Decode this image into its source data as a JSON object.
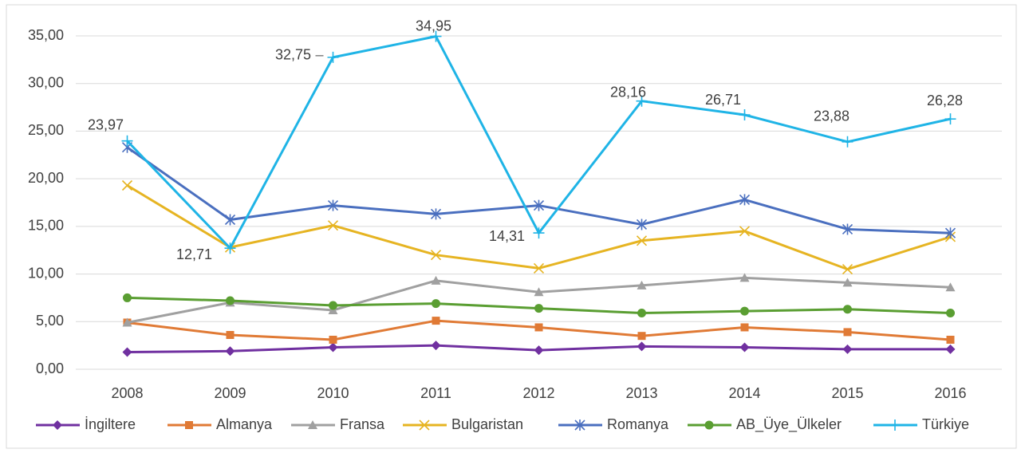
{
  "chart_data": {
    "type": "line",
    "categories": [
      "2008",
      "2009",
      "2010",
      "2011",
      "2012",
      "2013",
      "2014",
      "2015",
      "2016"
    ],
    "ylim": [
      0,
      35
    ],
    "yticks": [
      {
        "value": 0,
        "label": "0,00"
      },
      {
        "value": 5,
        "label": "5,00"
      },
      {
        "value": 10,
        "label": "10,00"
      },
      {
        "value": 15,
        "label": "15,00"
      },
      {
        "value": 20,
        "label": "20,00"
      },
      {
        "value": 25,
        "label": "25,00"
      },
      {
        "value": 30,
        "label": "30,00"
      },
      {
        "value": 35,
        "label": "35,00"
      }
    ],
    "grid": true,
    "legend": "bottom",
    "series": [
      {
        "name": "İngiltere",
        "color": "#7030a0",
        "marker": "diamond",
        "values": [
          1.8,
          1.9,
          2.3,
          2.5,
          2.0,
          2.4,
          2.3,
          2.1,
          2.1
        ]
      },
      {
        "name": "Almanya",
        "color": "#e07a35",
        "marker": "square",
        "values": [
          4.9,
          3.6,
          3.1,
          5.1,
          4.4,
          3.5,
          4.4,
          3.9,
          3.1
        ]
      },
      {
        "name": "Fransa",
        "color": "#a0a0a0",
        "marker": "triangle",
        "values": [
          4.9,
          7.0,
          6.2,
          9.3,
          8.1,
          8.8,
          9.6,
          9.1,
          8.6
        ]
      },
      {
        "name": "Bulgaristan",
        "color": "#e6b422",
        "marker": "x",
        "values": [
          19.3,
          12.8,
          15.1,
          12.0,
          10.6,
          13.5,
          14.5,
          10.5,
          13.9
        ]
      },
      {
        "name": "Romanya",
        "color": "#4a6fbf",
        "marker": "asterisk",
        "values": [
          23.3,
          15.7,
          17.2,
          16.3,
          17.2,
          15.2,
          17.8,
          14.7,
          14.3
        ]
      },
      {
        "name": "AB_Üye_Ülkeler",
        "color": "#5a9e32",
        "marker": "circle",
        "values": [
          7.5,
          7.2,
          6.7,
          6.9,
          6.4,
          5.9,
          6.1,
          6.3,
          5.9
        ]
      },
      {
        "name": "Türkiye",
        "color": "#1fb4e6",
        "marker": "plus",
        "values": [
          23.97,
          12.71,
          32.75,
          34.95,
          14.31,
          28.16,
          26.71,
          23.88,
          26.28
        ],
        "value_labels": [
          "23,97",
          "12,71",
          "32,75",
          "34,95",
          "14,31",
          "28,16",
          "26,71",
          "23,88",
          "26,28"
        ]
      }
    ]
  }
}
